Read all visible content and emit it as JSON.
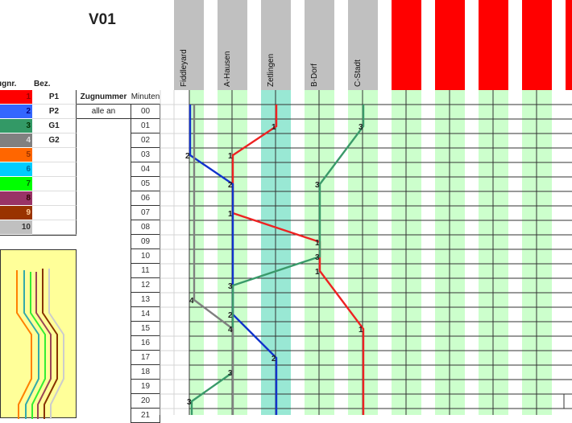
{
  "sheet_title": "V01",
  "headers": {
    "zugnr": "ugnr.",
    "bez": "Bez.",
    "zugnummer": "Zugnummer",
    "minuten": "Minuten"
  },
  "zugnummer_value": "alle an",
  "trains": [
    {
      "nr": "1",
      "bez": "P1",
      "color": "#ff0000",
      "text": "#990000"
    },
    {
      "nr": "2",
      "bez": "P2",
      "color": "#3366ff",
      "text": "#000080"
    },
    {
      "nr": "3",
      "bez": "G1",
      "color": "#339966",
      "text": "#003300"
    },
    {
      "nr": "4",
      "bez": "G2",
      "color": "#808080",
      "text": "#dddddd"
    },
    {
      "nr": "5",
      "bez": "",
      "color": "#ff6600",
      "text": "#993300"
    },
    {
      "nr": "6",
      "bez": "",
      "color": "#00ccff",
      "text": "#006699"
    },
    {
      "nr": "7",
      "bez": "",
      "color": "#00ff00",
      "text": "#006600"
    },
    {
      "nr": "8",
      "bez": "",
      "color": "#993366",
      "text": "#330000"
    },
    {
      "nr": "9",
      "bez": "",
      "color": "#993300",
      "text": "#ffcc99"
    },
    {
      "nr": "10",
      "bez": "",
      "color": "#c0c0c0",
      "text": "#333333"
    }
  ],
  "minutes": [
    "00",
    "01",
    "02",
    "03",
    "04",
    "05",
    "06",
    "07",
    "08",
    "09",
    "10",
    "11",
    "12",
    "13",
    "14",
    "15",
    "16",
    "17",
    "18",
    "19",
    "20",
    "21"
  ],
  "stations": [
    "Fiddleyard",
    "A-Hausen",
    "Zetlingen",
    "B-Dorf",
    "C-Stadt"
  ],
  "extra_columns_color": "#ff0000",
  "stripe_colors": {
    "normal": "#ccffcc",
    "highlight": "#99e8d4"
  },
  "chart_data": {
    "type": "line",
    "x_axis": "stations",
    "y_axis": "minutes",
    "series": [
      {
        "train": "1",
        "color": "#ee2222",
        "points": [
          [
            "Zetlingen",
            0
          ],
          [
            "Zetlingen",
            1.5
          ],
          [
            "A-Hausen",
            3.5
          ],
          [
            "A-Hausen",
            7.5
          ],
          [
            "B-Dorf",
            9.5
          ],
          [
            "B-Dorf",
            11.5
          ],
          [
            "C-Stadt",
            15.5
          ],
          [
            "C-Stadt",
            21.5
          ]
        ]
      },
      {
        "train": "2",
        "color": "#1133cc",
        "points": [
          [
            "Fiddleyard",
            0
          ],
          [
            "Fiddleyard",
            3.5
          ],
          [
            "A-Hausen",
            5.5
          ],
          [
            "A-Hausen",
            14.5
          ],
          [
            "Zetlingen",
            17.5
          ],
          [
            "Zetlingen",
            21.5
          ]
        ]
      },
      {
        "train": "3",
        "color": "#3a9a6a",
        "points": [
          [
            "C-Stadt",
            0
          ],
          [
            "C-Stadt",
            1.5
          ],
          [
            "B-Dorf",
            5.5
          ],
          [
            "B-Dorf",
            10.5
          ],
          [
            "A-Hausen",
            12.5
          ],
          [
            "A-Hausen",
            18.5
          ],
          [
            "Fiddleyard",
            20.5
          ],
          [
            "Fiddleyard",
            21.5
          ]
        ]
      },
      {
        "train": "4",
        "color": "#808080",
        "points": [
          [
            "Fiddleyard",
            0
          ],
          [
            "Fiddleyard",
            13.5
          ],
          [
            "A-Hausen",
            15.5
          ],
          [
            "A-Hausen",
            21.5
          ]
        ]
      }
    ]
  }
}
